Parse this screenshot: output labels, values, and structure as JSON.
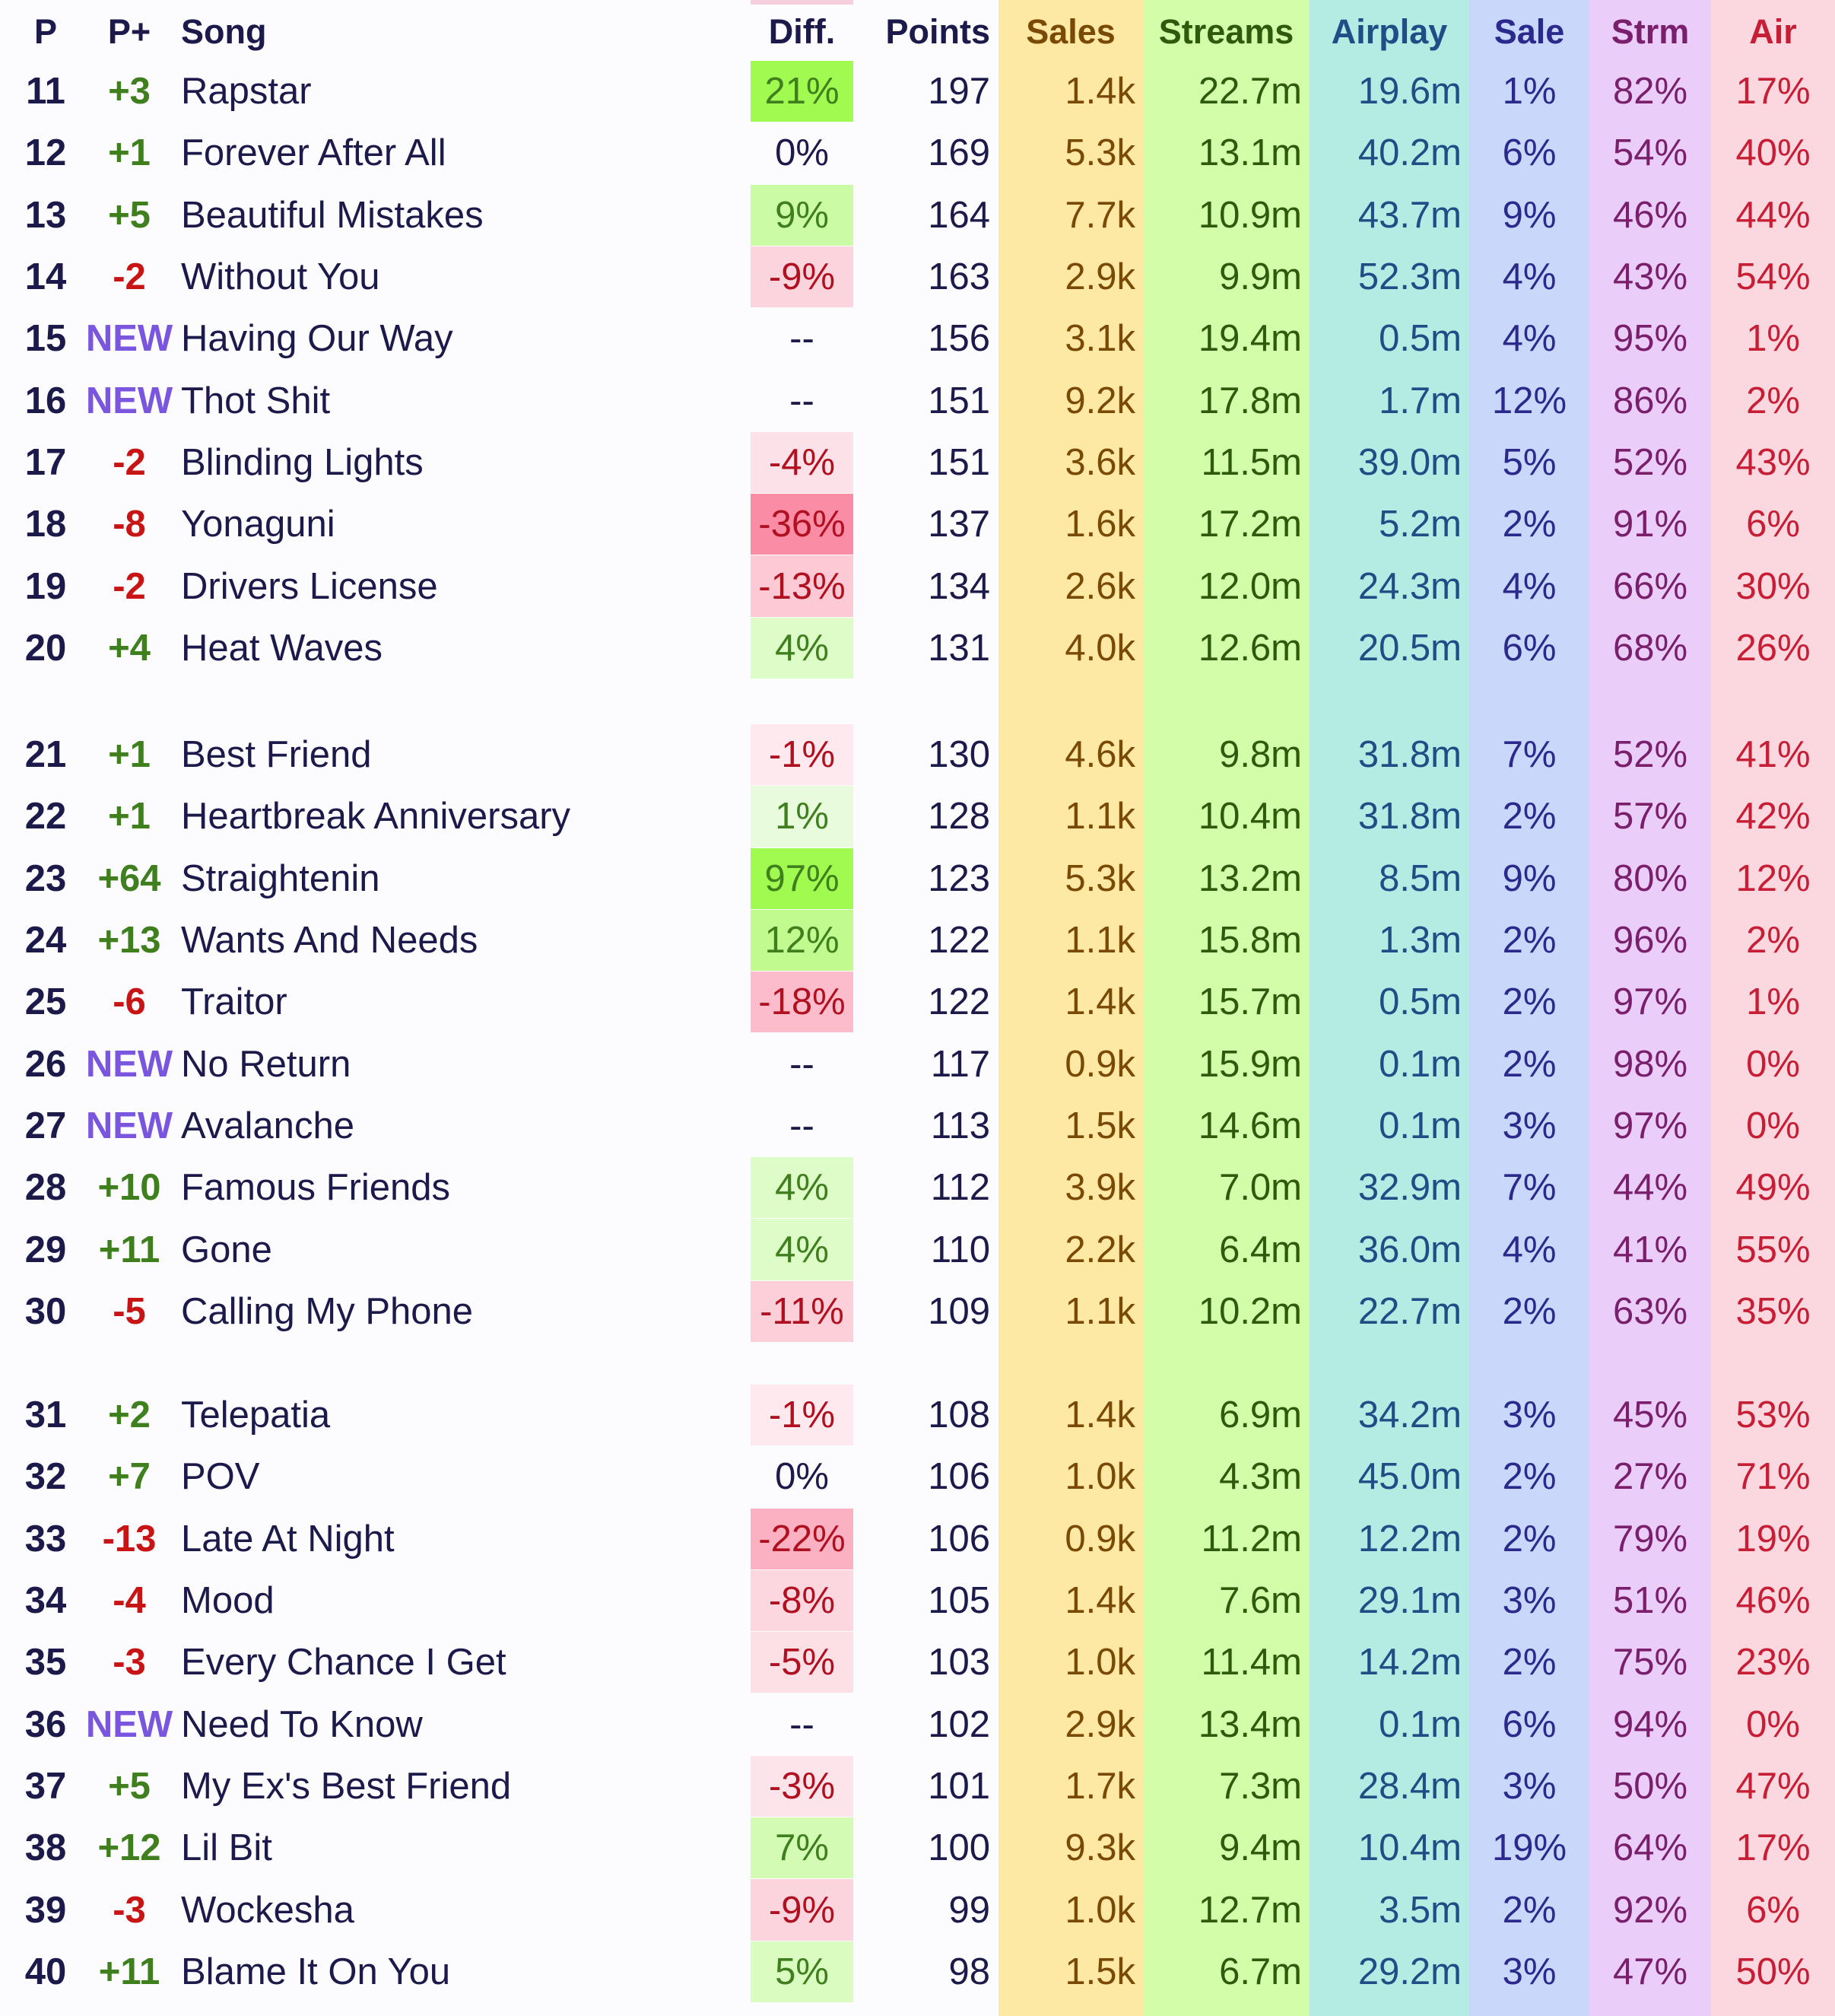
{
  "header": {
    "p": "P",
    "pplus": "P+",
    "song": "Song",
    "diff": "Diff.",
    "points": "Points",
    "sales": "Sales",
    "streams": "Streams",
    "airplay": "Airplay",
    "sale_pct": "Sale",
    "strm_pct": "Strm",
    "air_pct": "Air"
  },
  "colors": {
    "sales_bg": "#fde8a4",
    "streams_bg": "#d3fda8",
    "airplay_bg": "#b4ebe3",
    "sale_bg": "#c9d7fb",
    "strm_bg": "#ebcdfa",
    "air_bg": "#fbd7df",
    "sales_text": "#7a4a05",
    "streams_text": "#2e5a0d",
    "airplay_text": "#1f4e86",
    "sale_text": "#2b2a8c",
    "strm_text": "#7a1f6c",
    "air_text": "#c81e35",
    "positive": "#3f7f1e",
    "negative": "#c81414",
    "new": "#7a55dd"
  },
  "groups": [
    [
      {
        "p": "11",
        "pplus": "+3",
        "song": "Rapstar",
        "diff": "21%",
        "points": "197",
        "sales": "1.4k",
        "streams": "22.7m",
        "airplay": "19.6m",
        "sale": "1%",
        "strm": "82%",
        "air": "17%"
      },
      {
        "p": "12",
        "pplus": "+1",
        "song": "Forever After All",
        "diff": "0%",
        "points": "169",
        "sales": "5.3k",
        "streams": "13.1m",
        "airplay": "40.2m",
        "sale": "6%",
        "strm": "54%",
        "air": "40%"
      },
      {
        "p": "13",
        "pplus": "+5",
        "song": "Beautiful Mistakes",
        "diff": "9%",
        "points": "164",
        "sales": "7.7k",
        "streams": "10.9m",
        "airplay": "43.7m",
        "sale": "9%",
        "strm": "46%",
        "air": "44%"
      },
      {
        "p": "14",
        "pplus": "-2",
        "song": "Without You",
        "diff": "-9%",
        "points": "163",
        "sales": "2.9k",
        "streams": "9.9m",
        "airplay": "52.3m",
        "sale": "4%",
        "strm": "43%",
        "air": "54%"
      },
      {
        "p": "15",
        "pplus": "NEW",
        "song": "Having Our Way",
        "diff": "--",
        "points": "156",
        "sales": "3.1k",
        "streams": "19.4m",
        "airplay": "0.5m",
        "sale": "4%",
        "strm": "95%",
        "air": "1%"
      },
      {
        "p": "16",
        "pplus": "NEW",
        "song": "Thot Shit",
        "diff": "--",
        "points": "151",
        "sales": "9.2k",
        "streams": "17.8m",
        "airplay": "1.7m",
        "sale": "12%",
        "strm": "86%",
        "air": "2%"
      },
      {
        "p": "17",
        "pplus": "-2",
        "song": "Blinding Lights",
        "diff": "-4%",
        "points": "151",
        "sales": "3.6k",
        "streams": "11.5m",
        "airplay": "39.0m",
        "sale": "5%",
        "strm": "52%",
        "air": "43%"
      },
      {
        "p": "18",
        "pplus": "-8",
        "song": "Yonaguni",
        "diff": "-36%",
        "points": "137",
        "sales": "1.6k",
        "streams": "17.2m",
        "airplay": "5.2m",
        "sale": "2%",
        "strm": "91%",
        "air": "6%"
      },
      {
        "p": "19",
        "pplus": "-2",
        "song": "Drivers License",
        "diff": "-13%",
        "points": "134",
        "sales": "2.6k",
        "streams": "12.0m",
        "airplay": "24.3m",
        "sale": "4%",
        "strm": "66%",
        "air": "30%"
      },
      {
        "p": "20",
        "pplus": "+4",
        "song": "Heat Waves",
        "diff": "4%",
        "points": "131",
        "sales": "4.0k",
        "streams": "12.6m",
        "airplay": "20.5m",
        "sale": "6%",
        "strm": "68%",
        "air": "26%"
      }
    ],
    [
      {
        "p": "21",
        "pplus": "+1",
        "song": "Best Friend",
        "diff": "-1%",
        "points": "130",
        "sales": "4.6k",
        "streams": "9.8m",
        "airplay": "31.8m",
        "sale": "7%",
        "strm": "52%",
        "air": "41%"
      },
      {
        "p": "22",
        "pplus": "+1",
        "song": "Heartbreak Anniversary",
        "diff": "1%",
        "points": "128",
        "sales": "1.1k",
        "streams": "10.4m",
        "airplay": "31.8m",
        "sale": "2%",
        "strm": "57%",
        "air": "42%"
      },
      {
        "p": "23",
        "pplus": "+64",
        "song": "Straightenin",
        "diff": "97%",
        "points": "123",
        "sales": "5.3k",
        "streams": "13.2m",
        "airplay": "8.5m",
        "sale": "9%",
        "strm": "80%",
        "air": "12%"
      },
      {
        "p": "24",
        "pplus": "+13",
        "song": "Wants And Needs",
        "diff": "12%",
        "points": "122",
        "sales": "1.1k",
        "streams": "15.8m",
        "airplay": "1.3m",
        "sale": "2%",
        "strm": "96%",
        "air": "2%"
      },
      {
        "p": "25",
        "pplus": "-6",
        "song": "Traitor",
        "diff": "-18%",
        "points": "122",
        "sales": "1.4k",
        "streams": "15.7m",
        "airplay": "0.5m",
        "sale": "2%",
        "strm": "97%",
        "air": "1%"
      },
      {
        "p": "26",
        "pplus": "NEW",
        "song": "No Return",
        "diff": "--",
        "points": "117",
        "sales": "0.9k",
        "streams": "15.9m",
        "airplay": "0.1m",
        "sale": "2%",
        "strm": "98%",
        "air": "0%"
      },
      {
        "p": "27",
        "pplus": "NEW",
        "song": "Avalanche",
        "diff": "--",
        "points": "113",
        "sales": "1.5k",
        "streams": "14.6m",
        "airplay": "0.1m",
        "sale": "3%",
        "strm": "97%",
        "air": "0%"
      },
      {
        "p": "28",
        "pplus": "+10",
        "song": "Famous Friends",
        "diff": "4%",
        "points": "112",
        "sales": "3.9k",
        "streams": "7.0m",
        "airplay": "32.9m",
        "sale": "7%",
        "strm": "44%",
        "air": "49%"
      },
      {
        "p": "29",
        "pplus": "+11",
        "song": "Gone",
        "diff": "4%",
        "points": "110",
        "sales": "2.2k",
        "streams": "6.4m",
        "airplay": "36.0m",
        "sale": "4%",
        "strm": "41%",
        "air": "55%"
      },
      {
        "p": "30",
        "pplus": "-5",
        "song": "Calling My Phone",
        "diff": "-11%",
        "points": "109",
        "sales": "1.1k",
        "streams": "10.2m",
        "airplay": "22.7m",
        "sale": "2%",
        "strm": "63%",
        "air": "35%"
      }
    ],
    [
      {
        "p": "31",
        "pplus": "+2",
        "song": "Telepatia",
        "diff": "-1%",
        "points": "108",
        "sales": "1.4k",
        "streams": "6.9m",
        "airplay": "34.2m",
        "sale": "3%",
        "strm": "45%",
        "air": "53%"
      },
      {
        "p": "32",
        "pplus": "+7",
        "song": "POV",
        "diff": "0%",
        "points": "106",
        "sales": "1.0k",
        "streams": "4.3m",
        "airplay": "45.0m",
        "sale": "2%",
        "strm": "27%",
        "air": "71%"
      },
      {
        "p": "33",
        "pplus": "-13",
        "song": "Late At Night",
        "diff": "-22%",
        "points": "106",
        "sales": "0.9k",
        "streams": "11.2m",
        "airplay": "12.2m",
        "sale": "2%",
        "strm": "79%",
        "air": "19%"
      },
      {
        "p": "34",
        "pplus": "-4",
        "song": "Mood",
        "diff": "-8%",
        "points": "105",
        "sales": "1.4k",
        "streams": "7.6m",
        "airplay": "29.1m",
        "sale": "3%",
        "strm": "51%",
        "air": "46%"
      },
      {
        "p": "35",
        "pplus": "-3",
        "song": "Every Chance I Get",
        "diff": "-5%",
        "points": "103",
        "sales": "1.0k",
        "streams": "11.4m",
        "airplay": "14.2m",
        "sale": "2%",
        "strm": "75%",
        "air": "23%"
      },
      {
        "p": "36",
        "pplus": "NEW",
        "song": "Need To Know",
        "diff": "--",
        "points": "102",
        "sales": "2.9k",
        "streams": "13.4m",
        "airplay": "0.1m",
        "sale": "6%",
        "strm": "94%",
        "air": "0%"
      },
      {
        "p": "37",
        "pplus": "+5",
        "song": "My Ex's Best Friend",
        "diff": "-3%",
        "points": "101",
        "sales": "1.7k",
        "streams": "7.3m",
        "airplay": "28.4m",
        "sale": "3%",
        "strm": "50%",
        "air": "47%"
      },
      {
        "p": "38",
        "pplus": "+12",
        "song": "Lil Bit",
        "diff": "7%",
        "points": "100",
        "sales": "9.3k",
        "streams": "9.4m",
        "airplay": "10.4m",
        "sale": "19%",
        "strm": "64%",
        "air": "17%"
      },
      {
        "p": "39",
        "pplus": "-3",
        "song": "Wockesha",
        "diff": "-9%",
        "points": "99",
        "sales": "1.0k",
        "streams": "12.7m",
        "airplay": "3.5m",
        "sale": "2%",
        "strm": "92%",
        "air": "6%"
      },
      {
        "p": "40",
        "pplus": "+11",
        "song": "Blame It On You",
        "diff": "5%",
        "points": "98",
        "sales": "1.5k",
        "streams": "6.7m",
        "airplay": "29.2m",
        "sale": "3%",
        "strm": "47%",
        "air": "50%"
      }
    ]
  ]
}
